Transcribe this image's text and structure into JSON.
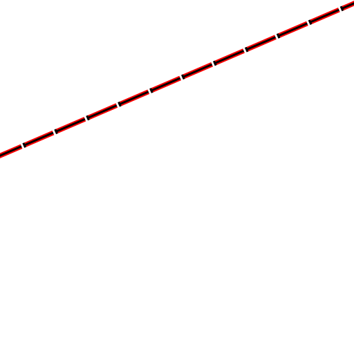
{
  "background_color": "#ffffff",
  "line": {
    "outer_color": "#ff0000",
    "inner_color": "#000000",
    "gap_color": "#ffffff",
    "pattern": "dashed"
  }
}
